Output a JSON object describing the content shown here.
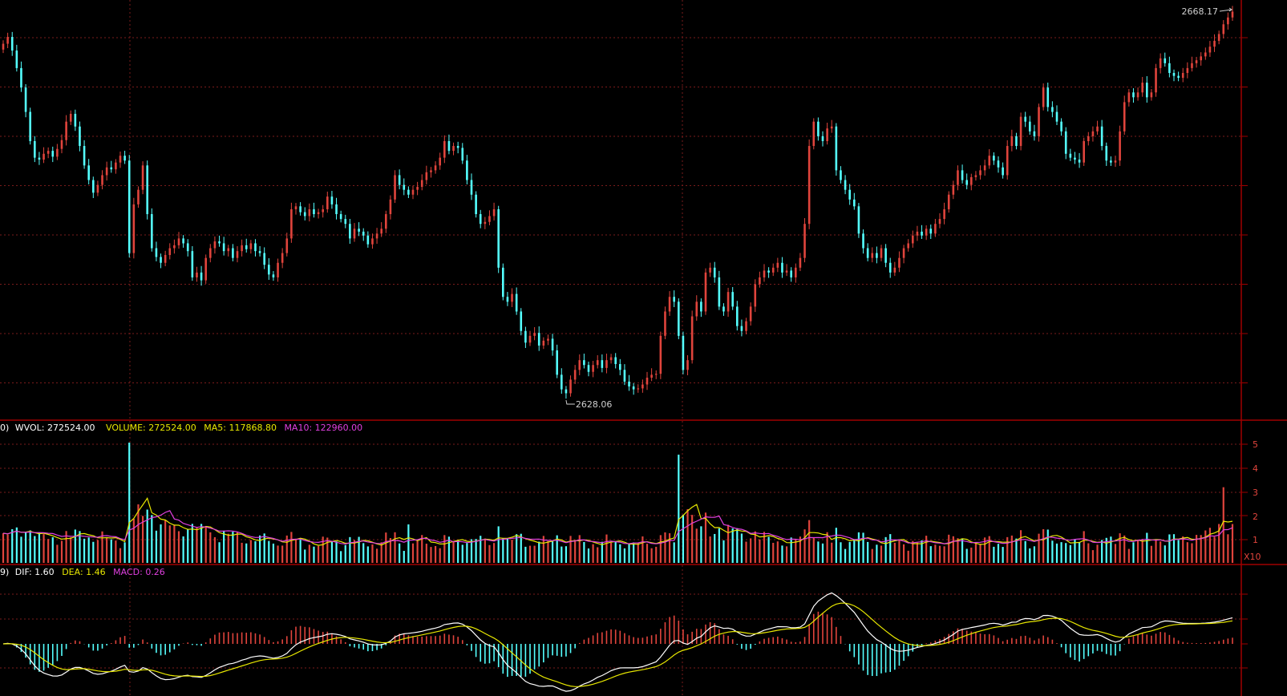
{
  "chart_data": [
    {
      "type": "candlestick",
      "panel": "price",
      "max_label": "2668.17",
      "min_label": "2628.06",
      "high_value": 2668.17,
      "low_value": 2628.06,
      "series": [
        {
          "values": [
            2664.5,
            2665.2,
            2663.8,
            2662.0,
            2660.0,
            2657.5,
            2654.5,
            2652.8,
            2652.6,
            2653.2,
            2653.5,
            2652.9,
            2653.7,
            2654.6,
            2656.5,
            2657.3,
            2656.0,
            2654.0,
            2652.0,
            2650.5,
            2649.2,
            2650.0,
            2651.0,
            2651.8,
            2651.6,
            2652.3,
            2653.0,
            2652.5,
            2643.0,
            2648.0,
            2649.5,
            2652.0,
            2647.0,
            2643.5,
            2642.6,
            2642.0,
            2642.8,
            2643.5,
            2643.8,
            2644.5,
            2644.0,
            2643.2,
            2640.5,
            2641.0,
            2640.2,
            2642.5,
            2643.5,
            2644.2,
            2644.0,
            2643.2,
            2643.5,
            2642.5,
            2643.2,
            2643.8,
            2643.4,
            2644.0,
            2643.2,
            2643.0,
            2641.8,
            2640.8,
            2640.5,
            2642.0,
            2643.0,
            2644.5,
            2647.5,
            2647.8,
            2647.2,
            2646.8,
            2647.5,
            2647.0,
            2647.2,
            2647.5,
            2648.8,
            2648.0,
            2647.0,
            2646.5,
            2646.0,
            2644.5,
            2645.5,
            2645.2,
            2644.8,
            2643.9,
            2644.5,
            2645.0,
            2645.5,
            2647.0,
            2648.5,
            2651.0,
            2650.0,
            2649.5,
            2649.0,
            2649.5,
            2649.8,
            2650.5,
            2651.3,
            2651.5,
            2652.0,
            2652.8,
            2654.5,
            2653.5,
            2654.0,
            2653.8,
            2652.5,
            2650.5,
            2649.0,
            2647.0,
            2646.0,
            2646.2,
            2646.8,
            2647.5,
            2641.5,
            2638.5,
            2638.0,
            2638.8,
            2637.0,
            2635.0,
            2633.8,
            2634.5,
            2634.8,
            2633.5,
            2634.0,
            2634.2,
            2633.0,
            2630.5,
            2629.0,
            2628.6,
            2630.0,
            2631.0,
            2632.0,
            2631.5,
            2630.8,
            2631.5,
            2632.0,
            2631.2,
            2632.0,
            2632.3,
            2631.6,
            2631.0,
            2629.8,
            2629.3,
            2629.0,
            2629.1,
            2629.5,
            2630.2,
            2630.5,
            2630.6,
            2634.5,
            2637.0,
            2638.5,
            2638.0,
            2634.5,
            2631.0,
            2632.0,
            2636.5,
            2638.0,
            2637.0,
            2641.0,
            2641.5,
            2640.5,
            2637.5,
            2637.0,
            2639.0,
            2637.5,
            2635.5,
            2635.0,
            2636.0,
            2637.5,
            2639.8,
            2640.5,
            2641.2,
            2641.0,
            2641.5,
            2642.0,
            2641.0,
            2641.2,
            2640.5,
            2641.5,
            2642.5,
            2646.0,
            2654.0,
            2656.5,
            2655.0,
            2654.5,
            2655.8,
            2656.0,
            2651.5,
            2650.5,
            2649.5,
            2648.5,
            2647.8,
            2645.0,
            2643.5,
            2642.5,
            2643.0,
            2642.5,
            2643.5,
            2642.0,
            2641.0,
            2641.5,
            2642.5,
            2643.5,
            2644.0,
            2644.8,
            2645.2,
            2644.8,
            2645.5,
            2645.0,
            2646.0,
            2646.5,
            2647.5,
            2649.0,
            2650.0,
            2651.5,
            2650.5,
            2650.0,
            2650.8,
            2651.0,
            2651.5,
            2652.0,
            2653.0,
            2652.5,
            2651.8,
            2651.0,
            2654.0,
            2655.0,
            2654.0,
            2657.0,
            2656.5,
            2655.5,
            2655.0,
            2658.0,
            2660.0,
            2658.0,
            2657.5,
            2656.5,
            2655.5,
            2653.2,
            2652.8,
            2652.6,
            2652.3,
            2654.5,
            2655.0,
            2655.5,
            2656.0,
            2654.0,
            2652.5,
            2652.3,
            2652.5,
            2655.5,
            2658.5,
            2659.5,
            2659.0,
            2659.5,
            2660.5,
            2659.0,
            2659.5,
            2662.0,
            2663.0,
            2662.5,
            2661.5,
            2661.2,
            2661.0,
            2661.5,
            2662.0,
            2662.5,
            2662.8,
            2663.2,
            2663.6,
            2664.2,
            2664.8,
            2665.5,
            2666.5,
            2667.2,
            2667.8
          ]
        }
      ]
    },
    {
      "type": "bar",
      "panel": "volume",
      "legend": {
        "prefix": "0)",
        "wvol_label": "WVOL: 272524.00",
        "volume_label": "VOLUME: 272524.00",
        "ma5_label": "MA5: 117868.80",
        "ma10_label": "MA10: 122960.00"
      },
      "wvol": 272524.0,
      "volume": 272524.0,
      "ma5": 117868.8,
      "ma10": 122960.0,
      "y_tick_labels": [
        "5",
        "4",
        "3",
        "2",
        "1"
      ],
      "unit_label": "X10"
    },
    {
      "type": "bar",
      "panel": "macd",
      "legend": {
        "prefix": "9)",
        "dif_label": "DIF: 1.60",
        "dea_label": "DEA: 1.46",
        "macd_label": "MACD: 0.26"
      },
      "dif": 1.6,
      "dea": 1.46,
      "macd": 0.26
    }
  ],
  "colors": {
    "up": "#e0443c",
    "down": "#54ffff",
    "grid": "#7a1b1b",
    "frame": "#a00000",
    "ma5": "#e8e800",
    "ma10": "#e040e0",
    "dif": "#ffffff",
    "dea": "#e8e800"
  }
}
